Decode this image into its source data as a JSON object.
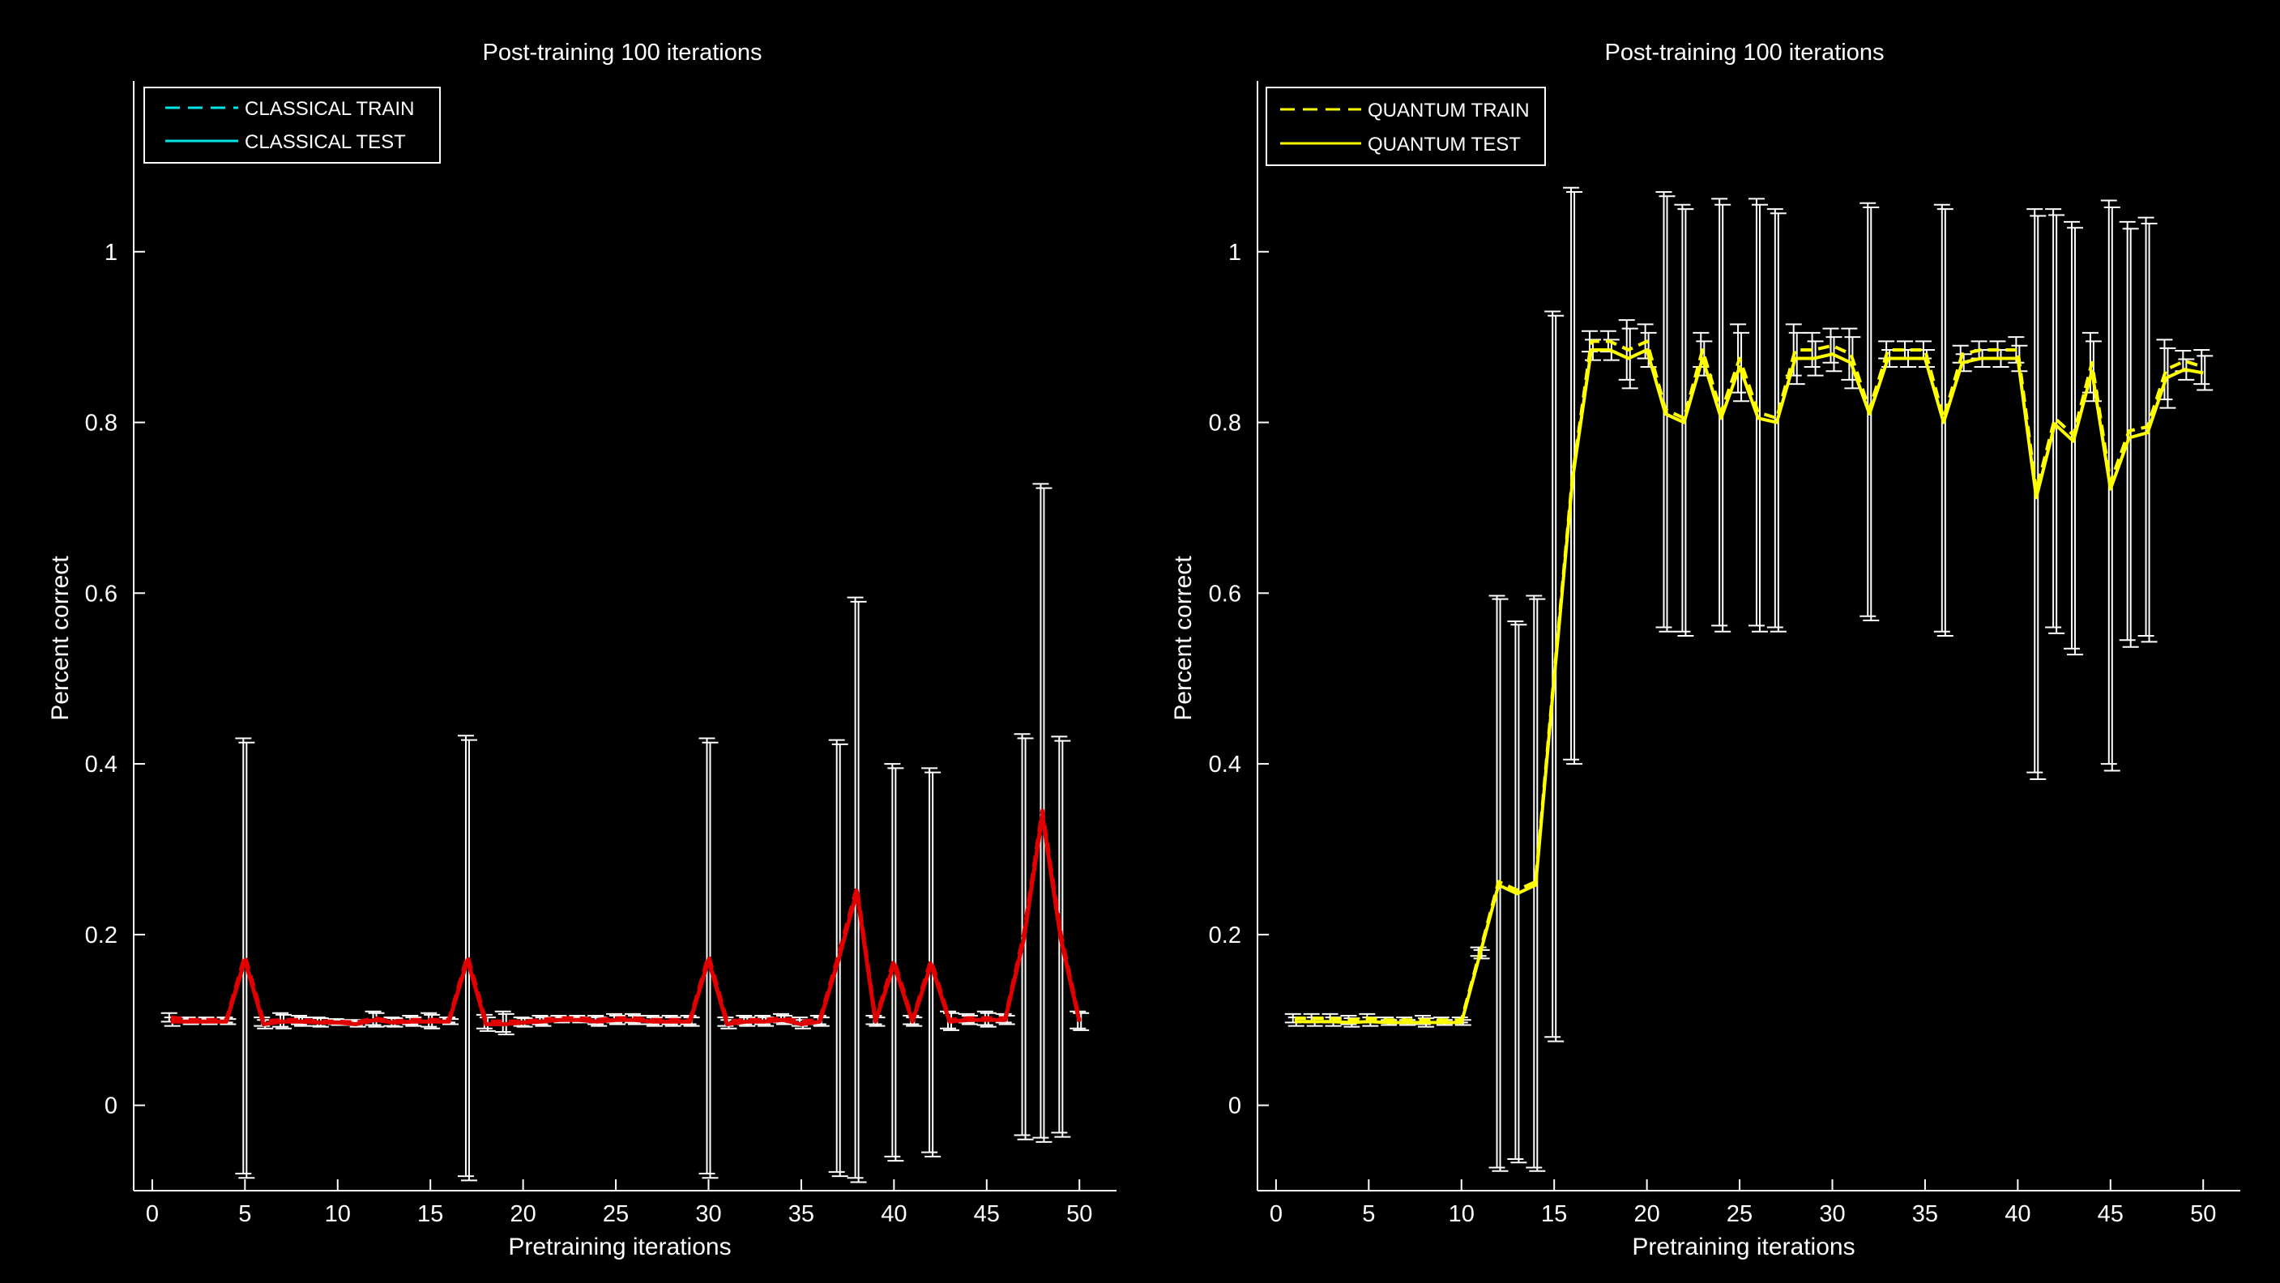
{
  "chart_data": [
    {
      "type": "line",
      "title": "Post-training 100 iterations",
      "xlabel": "Pretraining iterations",
      "ylabel": "Percent correct",
      "xlim": [
        -1,
        52
      ],
      "ylim": [
        -0.1,
        1.2
      ],
      "xticks": [
        0,
        5,
        10,
        15,
        20,
        25,
        30,
        35,
        40,
        45,
        50
      ],
      "yticks": [
        0,
        0.2,
        0.4,
        0.6,
        0.8,
        1
      ],
      "ytick_labels": [
        "0",
        "0.2",
        "0.4",
        "0.6",
        "0.8",
        "1"
      ],
      "grid": false,
      "legend_position": "top-left",
      "x": [
        1,
        2,
        3,
        4,
        5,
        6,
        7,
        8,
        9,
        10,
        11,
        12,
        13,
        14,
        15,
        16,
        17,
        18,
        19,
        20,
        21,
        22,
        23,
        24,
        25,
        26,
        27,
        28,
        29,
        30,
        31,
        32,
        33,
        34,
        35,
        36,
        37,
        38,
        39,
        40,
        41,
        42,
        43,
        44,
        45,
        46,
        47,
        48,
        49,
        50
      ],
      "series": [
        {
          "name": "CLASSICAL TRAIN",
          "style": "dashed",
          "color": "#00e5e5",
          "values": [
            0.103,
            0.1,
            0.1,
            0.1,
            0.175,
            0.098,
            0.1,
            0.1,
            0.098,
            0.098,
            0.097,
            0.102,
            0.098,
            0.1,
            0.1,
            0.1,
            0.175,
            0.098,
            0.098,
            0.098,
            0.1,
            0.102,
            0.102,
            0.1,
            0.102,
            0.102,
            0.1,
            0.1,
            0.1,
            0.175,
            0.098,
            0.1,
            0.1,
            0.102,
            0.098,
            0.1,
            0.175,
            0.255,
            0.1,
            0.17,
            0.1,
            0.17,
            0.1,
            0.102,
            0.102,
            0.102,
            0.2,
            0.345,
            0.2,
            0.1
          ],
          "errors": [
            0.005,
            0.003,
            0.003,
            0.003,
            0.255,
            0.005,
            0.008,
            0.005,
            0.005,
            0.003,
            0.003,
            0.008,
            0.005,
            0.005,
            0.008,
            0.003,
            0.258,
            0.008,
            0.012,
            0.005,
            0.005,
            0.003,
            0.003,
            0.005,
            0.005,
            0.005,
            0.005,
            0.005,
            0.005,
            0.255,
            0.005,
            0.005,
            0.005,
            0.005,
            0.005,
            0.005,
            0.253,
            0.34,
            0.005,
            0.23,
            0.005,
            0.225,
            0.01,
            0.005,
            0.008,
            0.005,
            0.235,
            0.383,
            0.232,
            0.01
          ]
        },
        {
          "name": "CLASSICAL TEST",
          "style": "solid",
          "color": "#00e5e5",
          "values": [
            0.098,
            0.098,
            0.098,
            0.098,
            0.17,
            0.095,
            0.098,
            0.098,
            0.097,
            0.097,
            0.095,
            0.1,
            0.097,
            0.098,
            0.098,
            0.098,
            0.17,
            0.095,
            0.095,
            0.097,
            0.098,
            0.1,
            0.1,
            0.098,
            0.1,
            0.1,
            0.098,
            0.098,
            0.098,
            0.17,
            0.095,
            0.098,
            0.098,
            0.1,
            0.095,
            0.098,
            0.17,
            0.25,
            0.098,
            0.165,
            0.098,
            0.165,
            0.098,
            0.1,
            0.1,
            0.1,
            0.195,
            0.34,
            0.195,
            0.098
          ],
          "errors": [
            0.005,
            0.003,
            0.003,
            0.003,
            0.255,
            0.005,
            0.008,
            0.005,
            0.005,
            0.003,
            0.003,
            0.008,
            0.005,
            0.005,
            0.008,
            0.003,
            0.258,
            0.008,
            0.012,
            0.005,
            0.005,
            0.003,
            0.003,
            0.005,
            0.005,
            0.005,
            0.005,
            0.005,
            0.005,
            0.255,
            0.005,
            0.005,
            0.005,
            0.005,
            0.005,
            0.005,
            0.253,
            0.34,
            0.005,
            0.23,
            0.005,
            0.225,
            0.01,
            0.005,
            0.008,
            0.005,
            0.235,
            0.383,
            0.232,
            0.01
          ]
        }
      ]
    },
    {
      "type": "line",
      "title": "Post-training 100 iterations",
      "xlabel": "Pretraining iterations",
      "ylabel": "Percent correct",
      "xlim": [
        -1,
        52
      ],
      "ylim": [
        -0.1,
        1.2
      ],
      "xticks": [
        0,
        5,
        10,
        15,
        20,
        25,
        30,
        35,
        40,
        45,
        50
      ],
      "yticks": [
        0,
        0.2,
        0.4,
        0.6,
        0.8,
        1
      ],
      "ytick_labels": [
        "0",
        "0.2",
        "0.4",
        "0.6",
        "0.8",
        "1"
      ],
      "grid": false,
      "legend_position": "top-left",
      "x": [
        1,
        2,
        3,
        4,
        5,
        6,
        7,
        8,
        9,
        10,
        11,
        12,
        13,
        14,
        15,
        16,
        17,
        18,
        19,
        20,
        21,
        22,
        23,
        24,
        25,
        26,
        27,
        28,
        29,
        30,
        31,
        32,
        33,
        34,
        35,
        36,
        37,
        38,
        39,
        40,
        41,
        42,
        43,
        44,
        45,
        46,
        47,
        48,
        49,
        50
      ],
      "series": [
        {
          "name": "QUANTUM TRAIN",
          "style": "dashed",
          "color": "#ffff00",
          "values": [
            0.102,
            0.102,
            0.102,
            0.1,
            0.102,
            0.1,
            0.1,
            0.1,
            0.1,
            0.1,
            0.18,
            0.262,
            0.252,
            0.262,
            0.505,
            0.74,
            0.895,
            0.895,
            0.885,
            0.895,
            0.815,
            0.805,
            0.885,
            0.812,
            0.875,
            0.812,
            0.805,
            0.885,
            0.885,
            0.89,
            0.88,
            0.815,
            0.885,
            0.885,
            0.885,
            0.805,
            0.88,
            0.885,
            0.885,
            0.885,
            0.72,
            0.805,
            0.785,
            0.87,
            0.73,
            0.79,
            0.795,
            0.862,
            0.872,
            0.865
          ],
          "errors": [
            0.005,
            0.005,
            0.005,
            0.005,
            0.005,
            0.003,
            0.003,
            0.005,
            0.003,
            0.003,
            0.005,
            0.335,
            0.315,
            0.335,
            0.425,
            0.335,
            0.012,
            0.012,
            0.035,
            0.02,
            0.255,
            0.25,
            0.02,
            0.25,
            0.04,
            0.25,
            0.245,
            0.03,
            0.02,
            0.02,
            0.03,
            0.242,
            0.01,
            0.01,
            0.01,
            0.25,
            0.01,
            0.01,
            0.01,
            0.015,
            0.33,
            0.245,
            0.25,
            0.035,
            0.33,
            0.245,
            0.245,
            0.035,
            0.012,
            0.02
          ]
        },
        {
          "name": "QUANTUM TEST",
          "style": "solid",
          "color": "#ffff00",
          "values": [
            0.098,
            0.098,
            0.098,
            0.097,
            0.098,
            0.097,
            0.097,
            0.097,
            0.097,
            0.097,
            0.177,
            0.258,
            0.248,
            0.258,
            0.5,
            0.735,
            0.885,
            0.885,
            0.875,
            0.885,
            0.81,
            0.8,
            0.875,
            0.805,
            0.865,
            0.805,
            0.8,
            0.875,
            0.875,
            0.88,
            0.87,
            0.81,
            0.875,
            0.875,
            0.875,
            0.8,
            0.87,
            0.875,
            0.875,
            0.875,
            0.712,
            0.798,
            0.778,
            0.86,
            0.722,
            0.782,
            0.788,
            0.852,
            0.862,
            0.858
          ],
          "errors": [
            0.005,
            0.005,
            0.005,
            0.005,
            0.005,
            0.003,
            0.003,
            0.005,
            0.003,
            0.003,
            0.005,
            0.335,
            0.315,
            0.335,
            0.425,
            0.335,
            0.012,
            0.012,
            0.035,
            0.02,
            0.255,
            0.25,
            0.02,
            0.25,
            0.04,
            0.25,
            0.245,
            0.03,
            0.02,
            0.02,
            0.03,
            0.242,
            0.01,
            0.01,
            0.01,
            0.25,
            0.01,
            0.01,
            0.01,
            0.015,
            0.33,
            0.245,
            0.25,
            0.035,
            0.33,
            0.245,
            0.245,
            0.035,
            0.012,
            0.02
          ]
        }
      ]
    }
  ]
}
